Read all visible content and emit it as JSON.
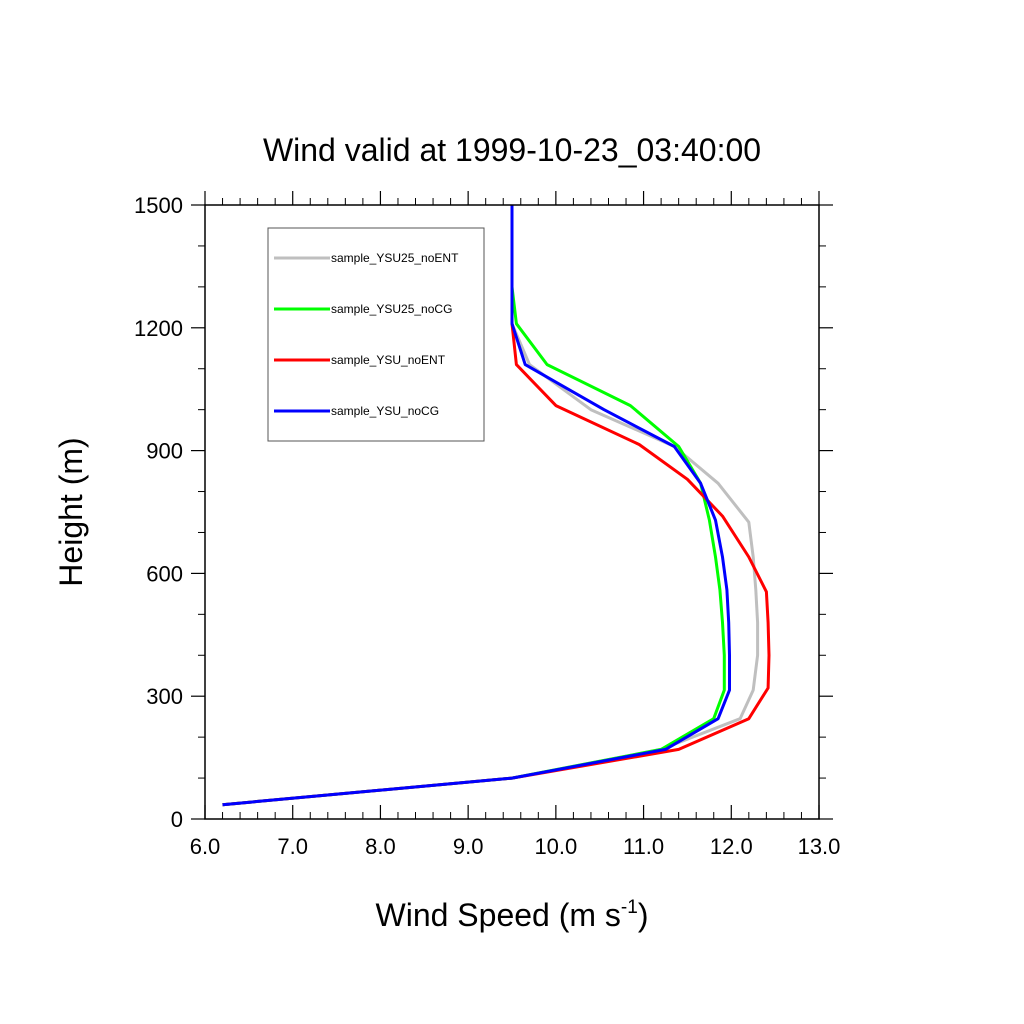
{
  "chart_data": {
    "type": "line",
    "title": "Wind valid at 1999-10-23_03:40:00",
    "xlabel": "Wind Speed (m s",
    "xlabel_sup": "-1",
    "xlabel_end": ")",
    "ylabel": "Height (m)",
    "xlim": [
      6.0,
      13.0
    ],
    "ylim": [
      0,
      1500
    ],
    "xticks": [
      "6.0",
      "7.0",
      "8.0",
      "9.0",
      "10.0",
      "11.0",
      "12.0",
      "13.0"
    ],
    "yticks": [
      "0",
      "300",
      "600",
      "900",
      "1200",
      "1500"
    ],
    "grid": false,
    "legend_position": "top-left",
    "series": [
      {
        "name": "sample_YSU25_noENT",
        "color": "#bfbfbf",
        "points": [
          [
            6.2,
            35
          ],
          [
            9.5,
            100
          ],
          [
            11.2,
            170
          ],
          [
            12.1,
            245
          ],
          [
            12.25,
            315
          ],
          [
            12.3,
            400
          ],
          [
            12.3,
            480
          ],
          [
            12.28,
            560
          ],
          [
            12.25,
            640
          ],
          [
            12.2,
            725
          ],
          [
            11.85,
            820
          ],
          [
            11.35,
            910
          ],
          [
            10.4,
            1000
          ],
          [
            9.7,
            1110
          ],
          [
            9.5,
            1210
          ],
          [
            9.5,
            1300
          ],
          [
            9.5,
            1400
          ],
          [
            9.5,
            1500
          ]
        ]
      },
      {
        "name": "sample_YSU25_noCG",
        "color": "#00ff00",
        "points": [
          [
            6.2,
            35
          ],
          [
            9.5,
            100
          ],
          [
            11.2,
            170
          ],
          [
            11.8,
            245
          ],
          [
            11.92,
            315
          ],
          [
            11.92,
            400
          ],
          [
            11.9,
            480
          ],
          [
            11.87,
            560
          ],
          [
            11.82,
            640
          ],
          [
            11.75,
            730
          ],
          [
            11.65,
            820
          ],
          [
            11.4,
            910
          ],
          [
            10.85,
            1010
          ],
          [
            9.9,
            1110
          ],
          [
            9.55,
            1210
          ],
          [
            9.5,
            1300
          ],
          [
            9.5,
            1400
          ],
          [
            9.5,
            1500
          ]
        ]
      },
      {
        "name": "sample_YSU_noENT",
        "color": "#ff0000",
        "points": [
          [
            6.2,
            35
          ],
          [
            9.5,
            100
          ],
          [
            11.4,
            170
          ],
          [
            12.2,
            245
          ],
          [
            12.42,
            320
          ],
          [
            12.43,
            400
          ],
          [
            12.42,
            480
          ],
          [
            12.4,
            555
          ],
          [
            12.2,
            640
          ],
          [
            11.9,
            740
          ],
          [
            11.5,
            830
          ],
          [
            10.95,
            915
          ],
          [
            10.0,
            1010
          ],
          [
            9.55,
            1110
          ],
          [
            9.5,
            1210
          ],
          [
            9.5,
            1300
          ],
          [
            9.5,
            1400
          ],
          [
            9.5,
            1500
          ]
        ]
      },
      {
        "name": "sample_YSU_noCG",
        "color": "#0000ff",
        "points": [
          [
            6.2,
            35
          ],
          [
            9.5,
            100
          ],
          [
            11.25,
            170
          ],
          [
            11.85,
            245
          ],
          [
            11.98,
            315
          ],
          [
            11.98,
            400
          ],
          [
            11.97,
            480
          ],
          [
            11.95,
            560
          ],
          [
            11.9,
            640
          ],
          [
            11.82,
            730
          ],
          [
            11.65,
            820
          ],
          [
            11.35,
            910
          ],
          [
            10.55,
            1000
          ],
          [
            9.65,
            1110
          ],
          [
            9.5,
            1210
          ],
          [
            9.5,
            1300
          ],
          [
            9.5,
            1400
          ],
          [
            9.5,
            1500
          ]
        ]
      }
    ]
  }
}
